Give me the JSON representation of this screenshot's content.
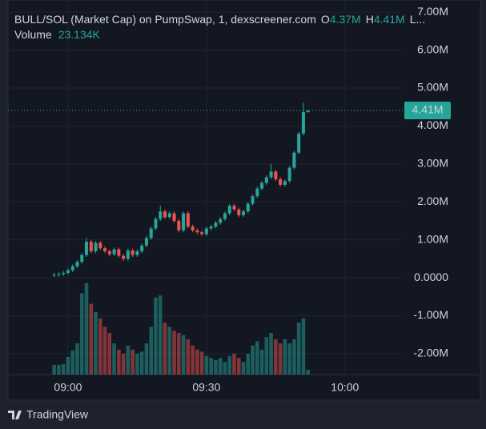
{
  "chart_data": {
    "type": "candlestick",
    "title": "BULL/SOL (Market Cap) on PumpSwap, 1, dexscreener.com",
    "ohlc_legend": [
      {
        "key": "O",
        "value": "4.37M"
      },
      {
        "key": "H",
        "value": "4.41M"
      },
      {
        "key": "L...",
        "value": ""
      }
    ],
    "volume_label": "Volume",
    "volume_value": "23.134K",
    "last_price": {
      "value": 4.41,
      "label": "4.41M"
    },
    "x": [
      "08:57",
      "08:58",
      "08:59",
      "09:00",
      "09:01",
      "09:02",
      "09:03",
      "09:04",
      "09:05",
      "09:06",
      "09:07",
      "09:08",
      "09:09",
      "09:10",
      "09:11",
      "09:12",
      "09:13",
      "09:14",
      "09:15",
      "09:16",
      "09:17",
      "09:18",
      "09:19",
      "09:20",
      "09:21",
      "09:22",
      "09:23",
      "09:24",
      "09:25",
      "09:26",
      "09:27",
      "09:28",
      "09:29",
      "09:30",
      "09:31",
      "09:32",
      "09:33",
      "09:34",
      "09:35",
      "09:36",
      "09:37",
      "09:38",
      "09:39",
      "09:40",
      "09:41",
      "09:42",
      "09:43",
      "09:44",
      "09:45",
      "09:46",
      "09:47",
      "09:48",
      "09:49",
      "09:50",
      "09:51",
      "09:52"
    ],
    "open": [
      0.07,
      0.08,
      0.1,
      0.13,
      0.2,
      0.3,
      0.42,
      0.6,
      0.95,
      0.7,
      0.92,
      0.78,
      0.7,
      0.62,
      0.75,
      0.58,
      0.5,
      0.72,
      0.6,
      0.7,
      0.85,
      1.05,
      1.3,
      1.55,
      1.75,
      1.6,
      1.7,
      1.5,
      1.25,
      1.7,
      1.35,
      1.25,
      1.2,
      1.15,
      1.3,
      1.35,
      1.45,
      1.55,
      1.7,
      1.9,
      1.8,
      1.65,
      1.75,
      1.95,
      2.15,
      2.35,
      2.5,
      2.65,
      2.8,
      2.6,
      2.45,
      2.55,
      2.9,
      3.3,
      3.8,
      4.37
    ],
    "high": [
      0.13,
      0.15,
      0.18,
      0.25,
      0.35,
      0.47,
      0.65,
      1.05,
      1.0,
      0.97,
      0.97,
      0.83,
      0.75,
      0.8,
      0.8,
      0.63,
      0.77,
      0.77,
      0.75,
      0.9,
      1.1,
      1.35,
      1.6,
      1.9,
      1.8,
      1.75,
      1.75,
      1.55,
      1.75,
      1.75,
      1.4,
      1.3,
      1.25,
      1.35,
      1.4,
      1.5,
      1.6,
      1.75,
      1.95,
      1.95,
      1.85,
      1.8,
      2.0,
      2.2,
      2.4,
      2.55,
      2.7,
      3.0,
      2.85,
      2.65,
      2.6,
      2.95,
      3.35,
      3.85,
      4.62,
      4.41
    ],
    "low": [
      0.02,
      0.03,
      0.05,
      0.08,
      0.15,
      0.25,
      0.37,
      0.55,
      0.65,
      0.65,
      0.73,
      0.65,
      0.57,
      0.57,
      0.53,
      0.45,
      0.45,
      0.55,
      0.55,
      0.65,
      0.8,
      1.0,
      1.25,
      1.5,
      1.55,
      1.55,
      1.45,
      1.2,
      1.2,
      1.3,
      1.2,
      1.15,
      1.1,
      1.1,
      1.25,
      1.3,
      1.4,
      1.5,
      1.65,
      1.75,
      1.6,
      1.6,
      1.7,
      1.9,
      2.1,
      2.3,
      2.45,
      2.6,
      2.55,
      2.4,
      2.4,
      2.5,
      2.85,
      3.25,
      3.75,
      4.35
    ],
    "close": [
      0.08,
      0.1,
      0.13,
      0.2,
      0.3,
      0.42,
      0.6,
      0.95,
      0.7,
      0.92,
      0.78,
      0.7,
      0.62,
      0.75,
      0.58,
      0.5,
      0.72,
      0.6,
      0.7,
      0.85,
      1.05,
      1.3,
      1.55,
      1.75,
      1.6,
      1.7,
      1.5,
      1.25,
      1.7,
      1.35,
      1.25,
      1.2,
      1.15,
      1.3,
      1.35,
      1.45,
      1.55,
      1.7,
      1.9,
      1.8,
      1.65,
      1.75,
      1.95,
      2.15,
      2.35,
      2.5,
      2.65,
      2.8,
      2.6,
      2.45,
      2.55,
      2.9,
      3.3,
      3.8,
      4.37,
      4.41
    ],
    "volume": [
      47,
      47,
      50,
      85,
      116,
      150,
      390,
      440,
      340,
      300,
      270,
      230,
      200,
      150,
      120,
      100,
      140,
      120,
      100,
      110,
      150,
      230,
      370,
      380,
      250,
      230,
      210,
      200,
      190,
      170,
      140,
      120,
      110,
      90,
      80,
      70,
      80,
      60,
      90,
      100,
      80,
      60,
      100,
      140,
      160,
      120,
      180,
      200,
      170,
      150,
      170,
      150,
      170,
      250,
      270,
      23.134
    ],
    "up_color": "#26a69a",
    "down_color": "#ef5350",
    "xlim": [
      "08:47",
      "10:12"
    ],
    "xticks": [
      "09:00",
      "09:30",
      "10:00"
    ],
    "ylim": [
      -2.55,
      7.32
    ],
    "yticks": [
      {
        "value": 7,
        "label": "7.00M"
      },
      {
        "value": 6,
        "label": "6.00M"
      },
      {
        "value": 5,
        "label": "5.00M"
      },
      {
        "value": 4,
        "label": "4.00M"
      },
      {
        "value": 3,
        "label": "3.00M"
      },
      {
        "value": 2,
        "label": "2.00M"
      },
      {
        "value": 1,
        "label": "1.00M"
      },
      {
        "value": 0,
        "label": "0.0000"
      },
      {
        "value": -1,
        "label": "-1.00M"
      },
      {
        "value": -2,
        "label": "-2.00M"
      }
    ],
    "volume_ylim": [
      0,
      1800
    ],
    "grid": true
  },
  "footer": {
    "brand": "TradingView"
  }
}
